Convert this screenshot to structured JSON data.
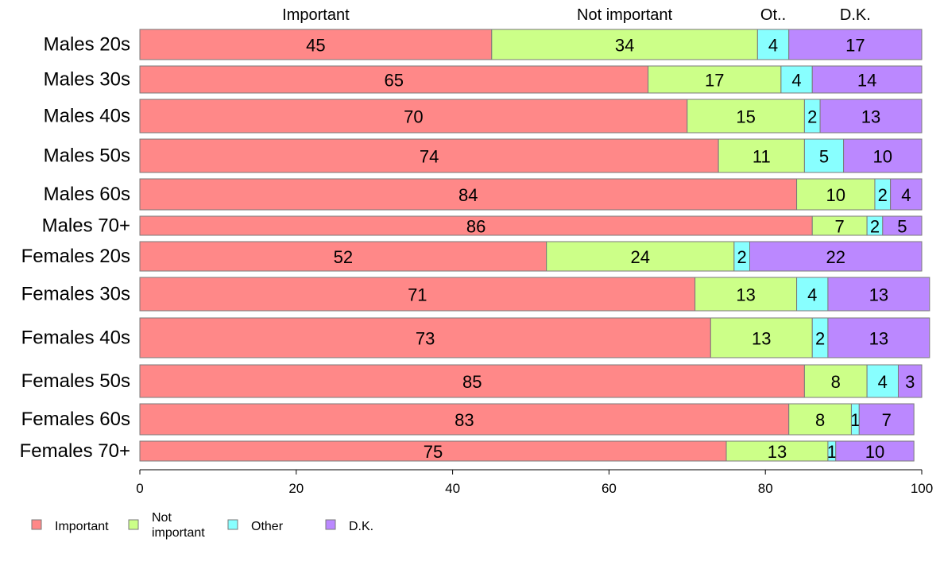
{
  "chart_data": {
    "type": "bar",
    "orientation": "horizontal",
    "stacked": true,
    "categories": [
      "Males 20s",
      "Males 30s",
      "Males 40s",
      "Males 50s",
      "Males 60s",
      "Males 70+",
      "Females 20s",
      "Females 30s",
      "Females 40s",
      "Females 50s",
      "Females 60s",
      "Females 70+"
    ],
    "series": [
      {
        "name": "Important",
        "color": "#ff8888",
        "values": [
          45,
          65,
          70,
          74,
          84,
          86,
          52,
          71,
          73,
          85,
          83,
          75
        ]
      },
      {
        "name": "Not important",
        "color": "#ccff88",
        "values": [
          34,
          17,
          15,
          11,
          10,
          7,
          24,
          13,
          13,
          8,
          8,
          13
        ]
      },
      {
        "name": "Other",
        "color": "#88ffff",
        "values": [
          4,
          4,
          2,
          5,
          2,
          2,
          2,
          4,
          2,
          4,
          1,
          1
        ]
      },
      {
        "name": "D.K.",
        "color": "#bb88ff",
        "values": [
          17,
          14,
          13,
          10,
          4,
          5,
          22,
          13,
          13,
          3,
          7,
          10
        ]
      }
    ],
    "top_labels": [
      "Important",
      "Not important",
      "Ot..",
      "D.K."
    ],
    "legend": [
      "Important",
      "Not\nimportant",
      "Other",
      "D.K."
    ],
    "legend_position": "bottom",
    "xlim": [
      0,
      100
    ],
    "xticks": [
      "0",
      "20",
      "40",
      "60",
      "80",
      "100"
    ],
    "grid": false
  }
}
